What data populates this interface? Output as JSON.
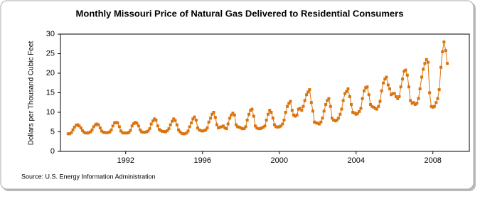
{
  "chart_data": {
    "type": "line",
    "title": "Monthly Missouri Price of Natural Gas Delivered to Residential Consumers",
    "y_label": "Dollars per Thousand Cubic Feet",
    "source": "Source: U.S. Energy Information Administration",
    "color": "#d9740f",
    "xlim": [
      1988.6,
      2009.9
    ],
    "xticks": [
      1992,
      1996,
      2000,
      2004,
      2008
    ],
    "ylim": [
      0,
      30
    ],
    "yticks": [
      0,
      5,
      10,
      15,
      20,
      25,
      30
    ],
    "x": [
      1989.0,
      1989.08,
      1989.17,
      1989.25,
      1989.33,
      1989.42,
      1989.5,
      1989.58,
      1989.67,
      1989.75,
      1989.83,
      1989.92,
      1990.0,
      1990.08,
      1990.17,
      1990.25,
      1990.33,
      1990.42,
      1990.5,
      1990.58,
      1990.67,
      1990.75,
      1990.83,
      1990.92,
      1991.0,
      1991.08,
      1991.17,
      1991.25,
      1991.33,
      1991.42,
      1991.5,
      1991.58,
      1991.67,
      1991.75,
      1991.83,
      1991.92,
      1992.0,
      1992.08,
      1992.17,
      1992.25,
      1992.33,
      1992.42,
      1992.5,
      1992.58,
      1992.67,
      1992.75,
      1992.83,
      1992.92,
      1993.0,
      1993.08,
      1993.17,
      1993.25,
      1993.33,
      1993.42,
      1993.5,
      1993.58,
      1993.67,
      1993.75,
      1993.83,
      1993.92,
      1994.0,
      1994.08,
      1994.17,
      1994.25,
      1994.33,
      1994.42,
      1994.5,
      1994.58,
      1994.67,
      1994.75,
      1994.83,
      1994.92,
      1995.0,
      1995.08,
      1995.17,
      1995.25,
      1995.33,
      1995.42,
      1995.5,
      1995.58,
      1995.67,
      1995.75,
      1995.83,
      1995.92,
      1996.0,
      1996.08,
      1996.17,
      1996.25,
      1996.33,
      1996.42,
      1996.5,
      1996.58,
      1996.67,
      1996.75,
      1996.83,
      1996.92,
      1997.0,
      1997.08,
      1997.17,
      1997.25,
      1997.33,
      1997.42,
      1997.5,
      1997.58,
      1997.67,
      1997.75,
      1997.83,
      1997.92,
      1998.0,
      1998.08,
      1998.17,
      1998.25,
      1998.33,
      1998.42,
      1998.5,
      1998.58,
      1998.67,
      1998.75,
      1998.83,
      1998.92,
      1999.0,
      1999.08,
      1999.17,
      1999.25,
      1999.33,
      1999.42,
      1999.5,
      1999.58,
      1999.67,
      1999.75,
      1999.83,
      1999.92,
      2000.0,
      2000.08,
      2000.17,
      2000.25,
      2000.33,
      2000.42,
      2000.5,
      2000.58,
      2000.67,
      2000.75,
      2000.83,
      2000.92,
      2001.0,
      2001.08,
      2001.17,
      2001.25,
      2001.33,
      2001.42,
      2001.5,
      2001.58,
      2001.67,
      2001.75,
      2001.83,
      2001.92,
      2002.0,
      2002.08,
      2002.17,
      2002.25,
      2002.33,
      2002.42,
      2002.5,
      2002.58,
      2002.67,
      2002.75,
      2002.83,
      2002.92,
      2003.0,
      2003.08,
      2003.17,
      2003.25,
      2003.33,
      2003.42,
      2003.5,
      2003.58,
      2003.67,
      2003.75,
      2003.83,
      2003.92,
      2004.0,
      2004.08,
      2004.17,
      2004.25,
      2004.33,
      2004.42,
      2004.5,
      2004.58,
      2004.67,
      2004.75,
      2004.83,
      2004.92,
      2005.0,
      2005.08,
      2005.17,
      2005.25,
      2005.33,
      2005.42,
      2005.5,
      2005.58,
      2005.67,
      2005.75,
      2005.83,
      2005.92,
      2006.0,
      2006.08,
      2006.17,
      2006.25,
      2006.33,
      2006.42,
      2006.5,
      2006.58,
      2006.67,
      2006.75,
      2006.83,
      2006.92,
      2007.0,
      2007.08,
      2007.17,
      2007.25,
      2007.33,
      2007.42,
      2007.5,
      2007.58,
      2007.67,
      2007.75,
      2007.83,
      2007.92,
      2008.0,
      2008.08,
      2008.17,
      2008.25,
      2008.33,
      2008.42,
      2008.5,
      2008.58,
      2008.67,
      2008.75
    ],
    "values": [
      4.5,
      4.5,
      4.8,
      5.5,
      6.2,
      6.7,
      6.8,
      6.5,
      6.0,
      5.3,
      4.9,
      4.7,
      4.7,
      4.8,
      5.0,
      5.5,
      6.3,
      6.8,
      7.0,
      6.8,
      6.0,
      5.2,
      4.9,
      4.8,
      4.8,
      4.8,
      5.0,
      5.5,
      6.5,
      7.3,
      7.4,
      7.3,
      6.3,
      5.2,
      4.8,
      4.7,
      4.7,
      4.7,
      4.9,
      5.4,
      6.5,
      7.1,
      7.4,
      7.2,
      6.5,
      5.5,
      5.0,
      4.9,
      4.9,
      5.0,
      5.2,
      5.8,
      7.0,
      7.8,
      8.3,
      8.0,
      6.5,
      5.6,
      5.3,
      5.1,
      5.1,
      5.0,
      5.3,
      5.8,
      6.8,
      7.7,
      8.3,
      7.9,
      6.8,
      5.5,
      5.0,
      4.6,
      4.5,
      4.5,
      4.7,
      5.2,
      6.3,
      7.3,
      8.3,
      8.8,
      8.0,
      6.0,
      5.5,
      5.3,
      5.2,
      5.3,
      5.5,
      6.0,
      7.5,
      8.5,
      9.5,
      10.0,
      8.7,
      6.8,
      6.0,
      6.2,
      6.3,
      6.5,
      6.0,
      5.8,
      7.0,
      8.5,
      9.3,
      9.8,
      9.3,
      6.8,
      6.3,
      6.2,
      6.0,
      5.8,
      5.8,
      6.3,
      8.0,
      9.5,
      10.5,
      10.8,
      9.0,
      6.5,
      6.0,
      5.8,
      5.8,
      6.0,
      6.2,
      6.5,
      8.0,
      9.5,
      10.5,
      10.0,
      8.5,
      6.8,
      6.3,
      6.2,
      6.3,
      6.5,
      7.0,
      8.0,
      10.0,
      11.5,
      12.3,
      12.8,
      10.5,
      9.3,
      9.0,
      9.3,
      10.8,
      11.0,
      10.5,
      11.5,
      13.0,
      14.5,
      15.2,
      15.8,
      12.5,
      10.3,
      7.5,
      7.3,
      7.2,
      7.0,
      7.5,
      8.5,
      10.3,
      12.0,
      13.0,
      13.5,
      11.5,
      8.5,
      8.0,
      7.8,
      8.0,
      8.5,
      9.5,
      10.8,
      13.0,
      14.8,
      15.3,
      16.0,
      14.0,
      12.0,
      10.0,
      9.8,
      9.5,
      9.7,
      10.2,
      11.0,
      13.5,
      15.5,
      16.3,
      16.5,
      14.5,
      12.0,
      11.5,
      11.3,
      11.0,
      10.8,
      11.5,
      12.8,
      15.5,
      17.5,
      18.5,
      19.0,
      17.0,
      16.0,
      14.5,
      14.8,
      14.8,
      14.0,
      13.5,
      14.0,
      16.5,
      18.5,
      20.5,
      20.8,
      19.5,
      16.5,
      13.0,
      12.3,
      12.5,
      12.0,
      12.3,
      13.5,
      16.0,
      19.0,
      21.0,
      22.5,
      23.5,
      22.8,
      15.0,
      11.5,
      11.3,
      11.5,
      12.5,
      13.5,
      15.8,
      21.5,
      25.5,
      28.0,
      25.8,
      22.5
    ]
  }
}
